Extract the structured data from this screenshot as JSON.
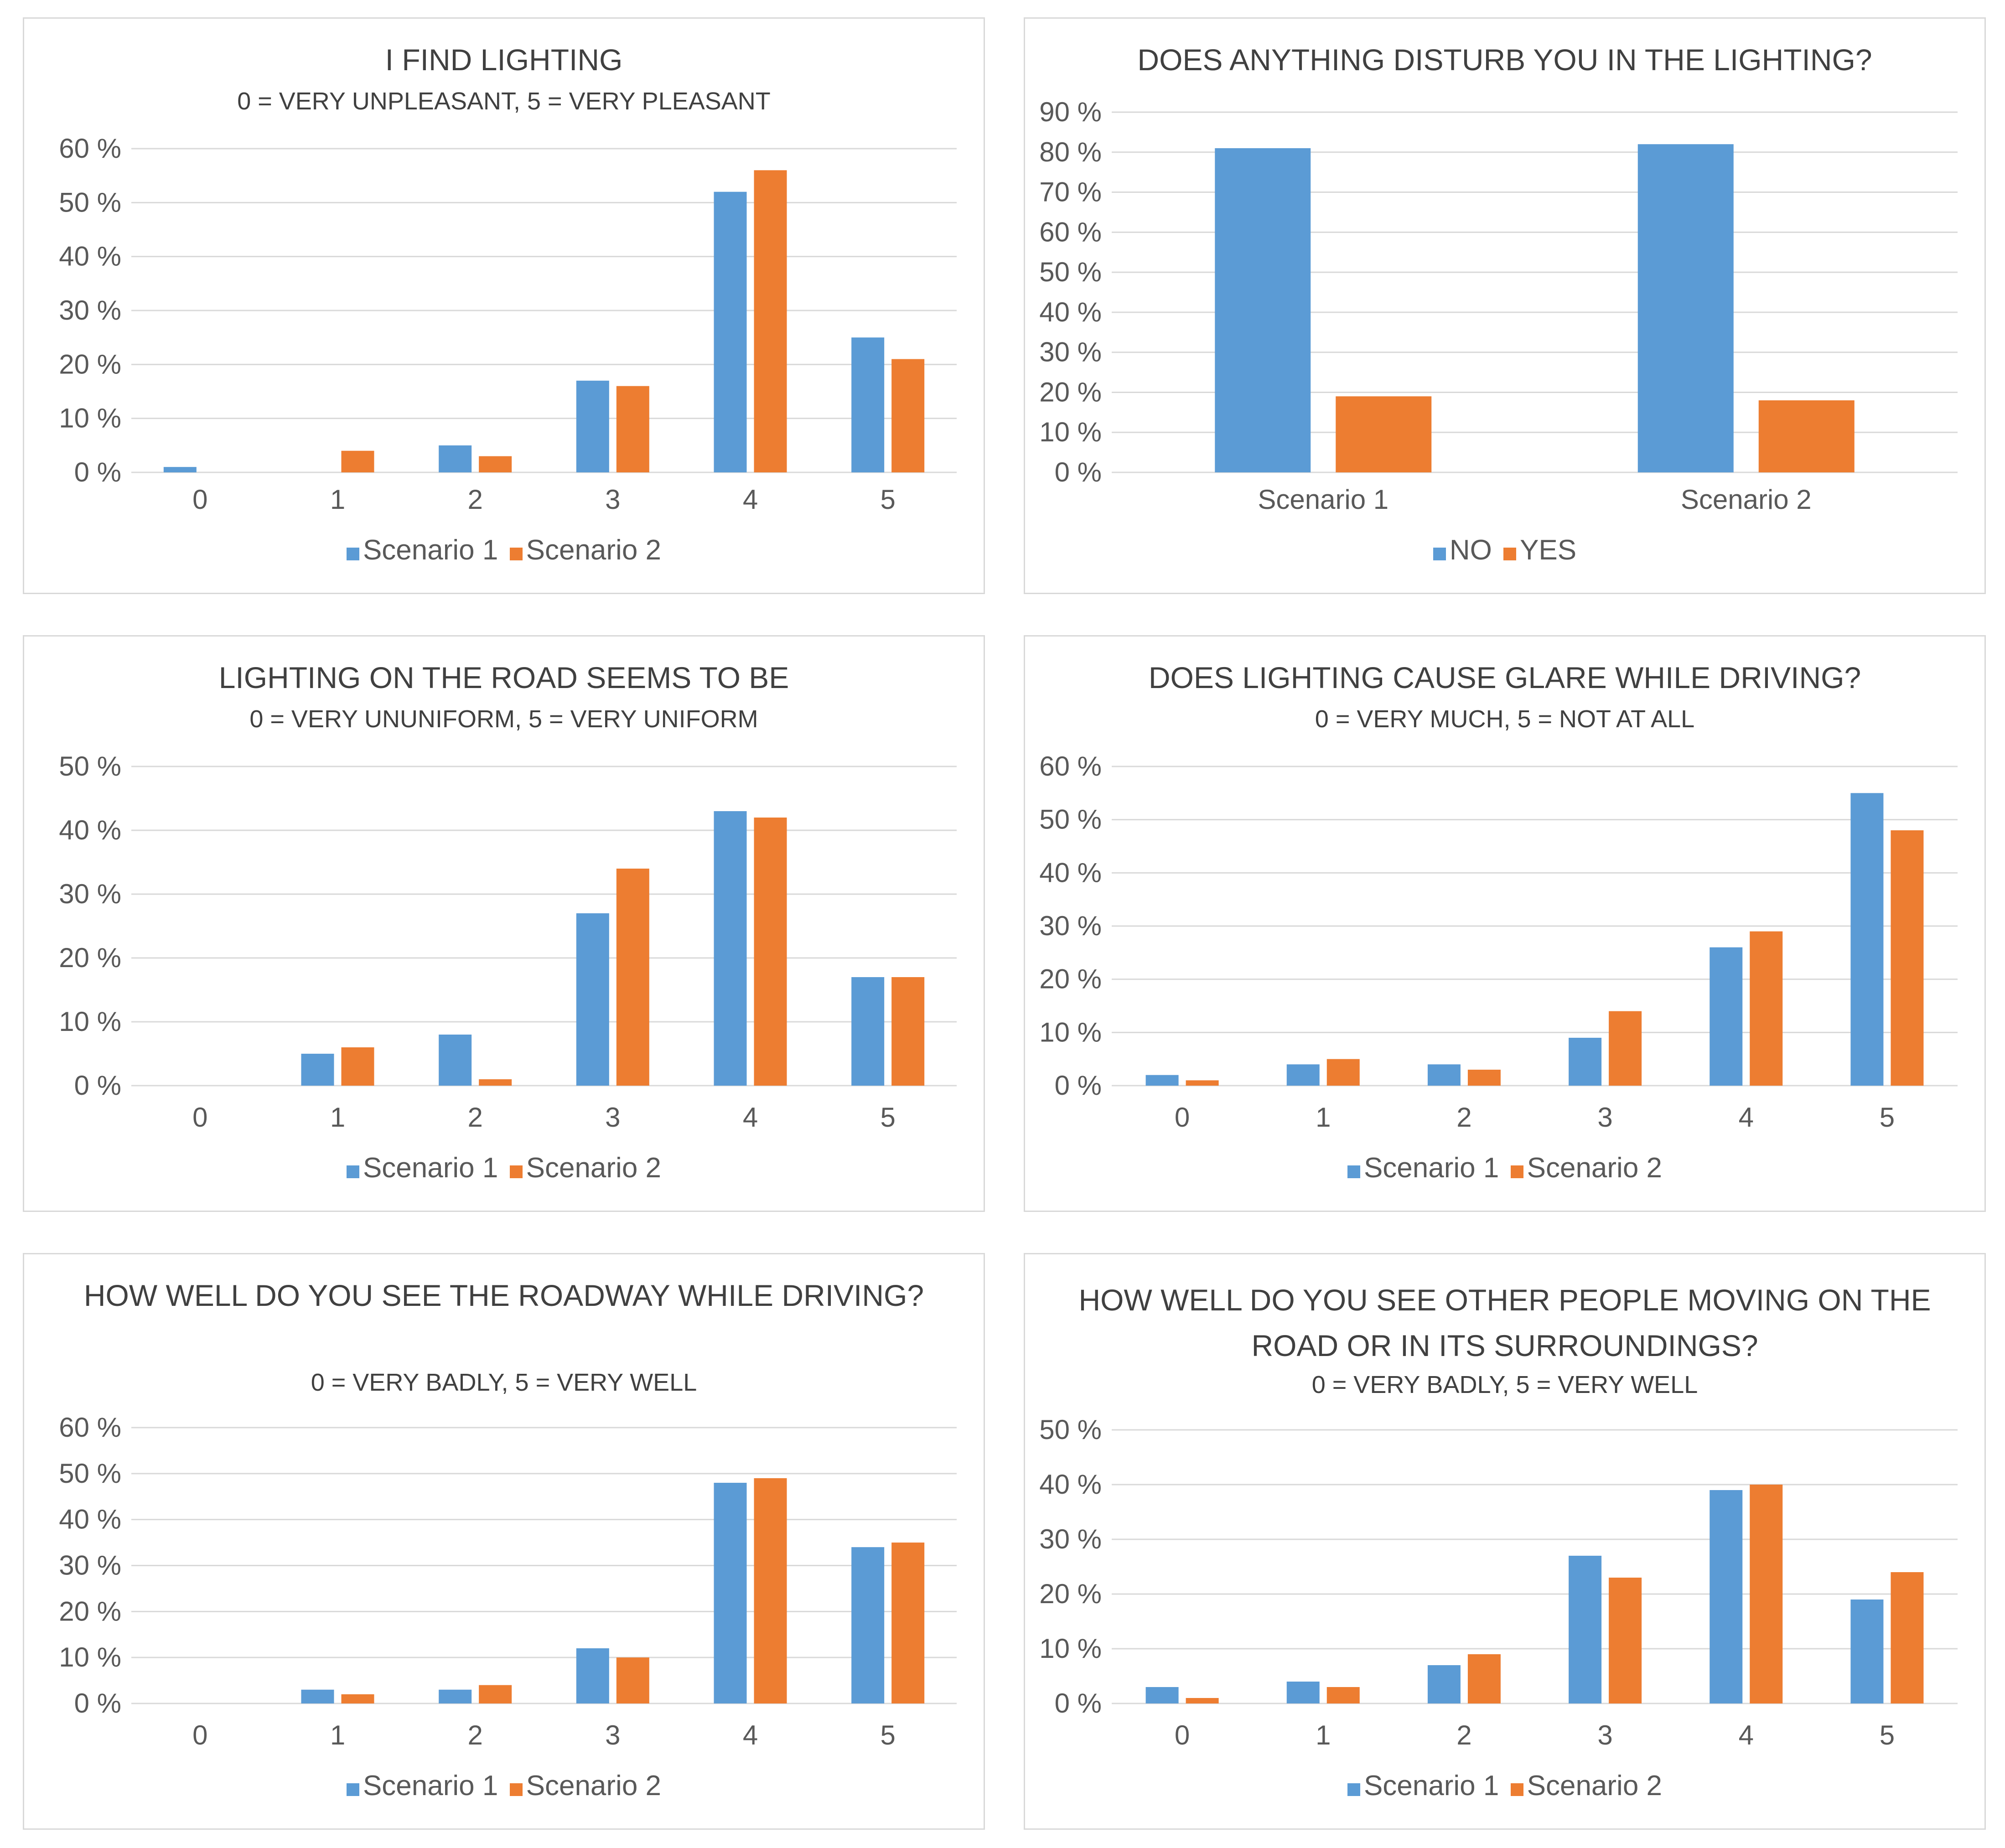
{
  "colors": {
    "series1": "#5b9bd5",
    "series2": "#ed7d31",
    "grid": "#d9d9d9",
    "text": "#595959",
    "title": "#404040"
  },
  "chart_data": [
    {
      "id": "c1",
      "type": "bar",
      "title": "I FIND LIGHTING",
      "subtitle": "0 = VERY UNPLEASANT, 5 = VERY PLEASANT",
      "categories": [
        "0",
        "1",
        "2",
        "3",
        "4",
        "5"
      ],
      "series": [
        {
          "name": "Scenario 1",
          "values": [
            1,
            0,
            5,
            17,
            52,
            25
          ]
        },
        {
          "name": "Scenario 2",
          "values": [
            0,
            4,
            3,
            16,
            56,
            21
          ]
        }
      ],
      "yticks": [
        "0 %",
        "10 %",
        "20 %",
        "30 %",
        "40 %",
        "50 %",
        "60 %"
      ],
      "ylim": [
        0,
        60
      ]
    },
    {
      "id": "c2",
      "type": "bar",
      "title": "DOES ANYTHING DISTURB YOU IN THE LIGHTING?",
      "subtitle": "",
      "categories": [
        "Scenario 1",
        "Scenario 2"
      ],
      "series": [
        {
          "name": "NO",
          "values": [
            81,
            82
          ]
        },
        {
          "name": "YES",
          "values": [
            19,
            18
          ]
        }
      ],
      "yticks": [
        "0 %",
        "10 %",
        "20 %",
        "30 %",
        "40 %",
        "50 %",
        "60 %",
        "70 %",
        "80 %",
        "90 %"
      ],
      "ylim": [
        0,
        90
      ]
    },
    {
      "id": "c3",
      "type": "bar",
      "title": "LIGHTING ON THE ROAD SEEMS TO BE",
      "subtitle": "0 = VERY UNUNIFORM, 5 = VERY UNIFORM",
      "categories": [
        "0",
        "1",
        "2",
        "3",
        "4",
        "5"
      ],
      "series": [
        {
          "name": "Scenario 1",
          "values": [
            0,
            5,
            8,
            27,
            43,
            17
          ]
        },
        {
          "name": "Scenario 2",
          "values": [
            0,
            6,
            1,
            34,
            42,
            17
          ]
        }
      ],
      "yticks": [
        "0 %",
        "10 %",
        "20 %",
        "30 %",
        "40 %",
        "50 %"
      ],
      "ylim": [
        0,
        50
      ]
    },
    {
      "id": "c4",
      "type": "bar",
      "title": "DOES LIGHTING CAUSE GLARE WHILE DRIVING?",
      "subtitle": "0 = VERY MUCH, 5 = NOT AT ALL",
      "categories": [
        "0",
        "1",
        "2",
        "3",
        "4",
        "5"
      ],
      "series": [
        {
          "name": "Scenario 1",
          "values": [
            2,
            4,
            4,
            9,
            26,
            55
          ]
        },
        {
          "name": "Scenario 2",
          "values": [
            1,
            5,
            3,
            14,
            29,
            48
          ]
        }
      ],
      "yticks": [
        "0 %",
        "10 %",
        "20 %",
        "30 %",
        "40 %",
        "50 %",
        "60 %"
      ],
      "ylim": [
        0,
        60
      ]
    },
    {
      "id": "c5",
      "type": "bar",
      "title": "HOW WELL DO YOU SEE THE ROADWAY WHILE DRIVING?",
      "subtitle": "0 = VERY BADLY, 5 = VERY WELL",
      "categories": [
        "0",
        "1",
        "2",
        "3",
        "4",
        "5"
      ],
      "series": [
        {
          "name": "Scenario 1",
          "values": [
            0,
            3,
            3,
            12,
            48,
            34
          ]
        },
        {
          "name": "Scenario 2",
          "values": [
            0,
            2,
            4,
            10,
            49,
            35
          ]
        }
      ],
      "yticks": [
        "0 %",
        "10 %",
        "20 %",
        "30 %",
        "40 %",
        "50 %",
        "60 %"
      ],
      "ylim": [
        0,
        60
      ]
    },
    {
      "id": "c6",
      "type": "bar",
      "title": "HOW WELL DO YOU SEE OTHER PEOPLE MOVING ON THE ROAD OR IN ITS SURROUNDINGS?",
      "subtitle": "0 = VERY BADLY, 5 = VERY WELL",
      "categories": [
        "0",
        "1",
        "2",
        "3",
        "4",
        "5"
      ],
      "series": [
        {
          "name": "Scenario 1",
          "values": [
            3,
            4,
            7,
            27,
            39,
            19
          ]
        },
        {
          "name": "Scenario 2",
          "values": [
            1,
            3,
            9,
            23,
            40,
            24
          ]
        }
      ],
      "yticks": [
        "0 %",
        "10 %",
        "20 %",
        "30 %",
        "40 %",
        "50 %"
      ],
      "ylim": [
        0,
        50
      ]
    }
  ]
}
